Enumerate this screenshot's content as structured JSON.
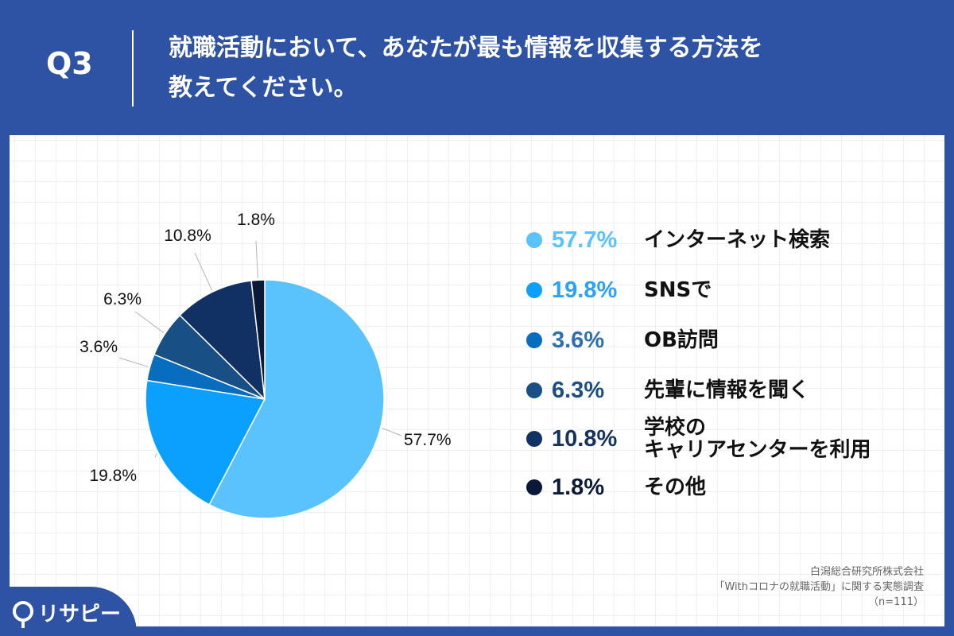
{
  "header": {
    "q_number": "Q3",
    "question_line1": "就職活動において、あなたが最も情報を収集する方法を",
    "question_line2": "教えてください。"
  },
  "chart_data": {
    "type": "pie",
    "categories": [
      "インターネット検索",
      "SNSで",
      "OB訪問",
      "先輩に情報を聞く",
      "学校の\nキャリアセンターを利用",
      "その他"
    ],
    "values": [
      57.7,
      19.8,
      3.6,
      6.3,
      10.8,
      1.8
    ],
    "value_labels": [
      "57.7%",
      "19.8%",
      "3.6%",
      "6.3%",
      "10.8%",
      "1.8%"
    ],
    "colors": [
      "#5ac3fd",
      "#0ba0fd",
      "#086cbf",
      "#184f85",
      "#113063",
      "#0a1938"
    ],
    "legend_text_colors": [
      "#5ac3fd",
      "#2aa3f7",
      "#2c6fb3",
      "#1d4e80",
      "#16325e",
      "#0c1a36"
    ],
    "start_angle": "12 o'clock",
    "direction": "clockwise",
    "legend_position": "right"
  },
  "footer": {
    "line1": "白潟総合研究所株式会社",
    "line2": "「Withコロナの就職活動」に関する実態調査",
    "line3": "（n=111）"
  },
  "logo": {
    "text": "リサピー"
  }
}
